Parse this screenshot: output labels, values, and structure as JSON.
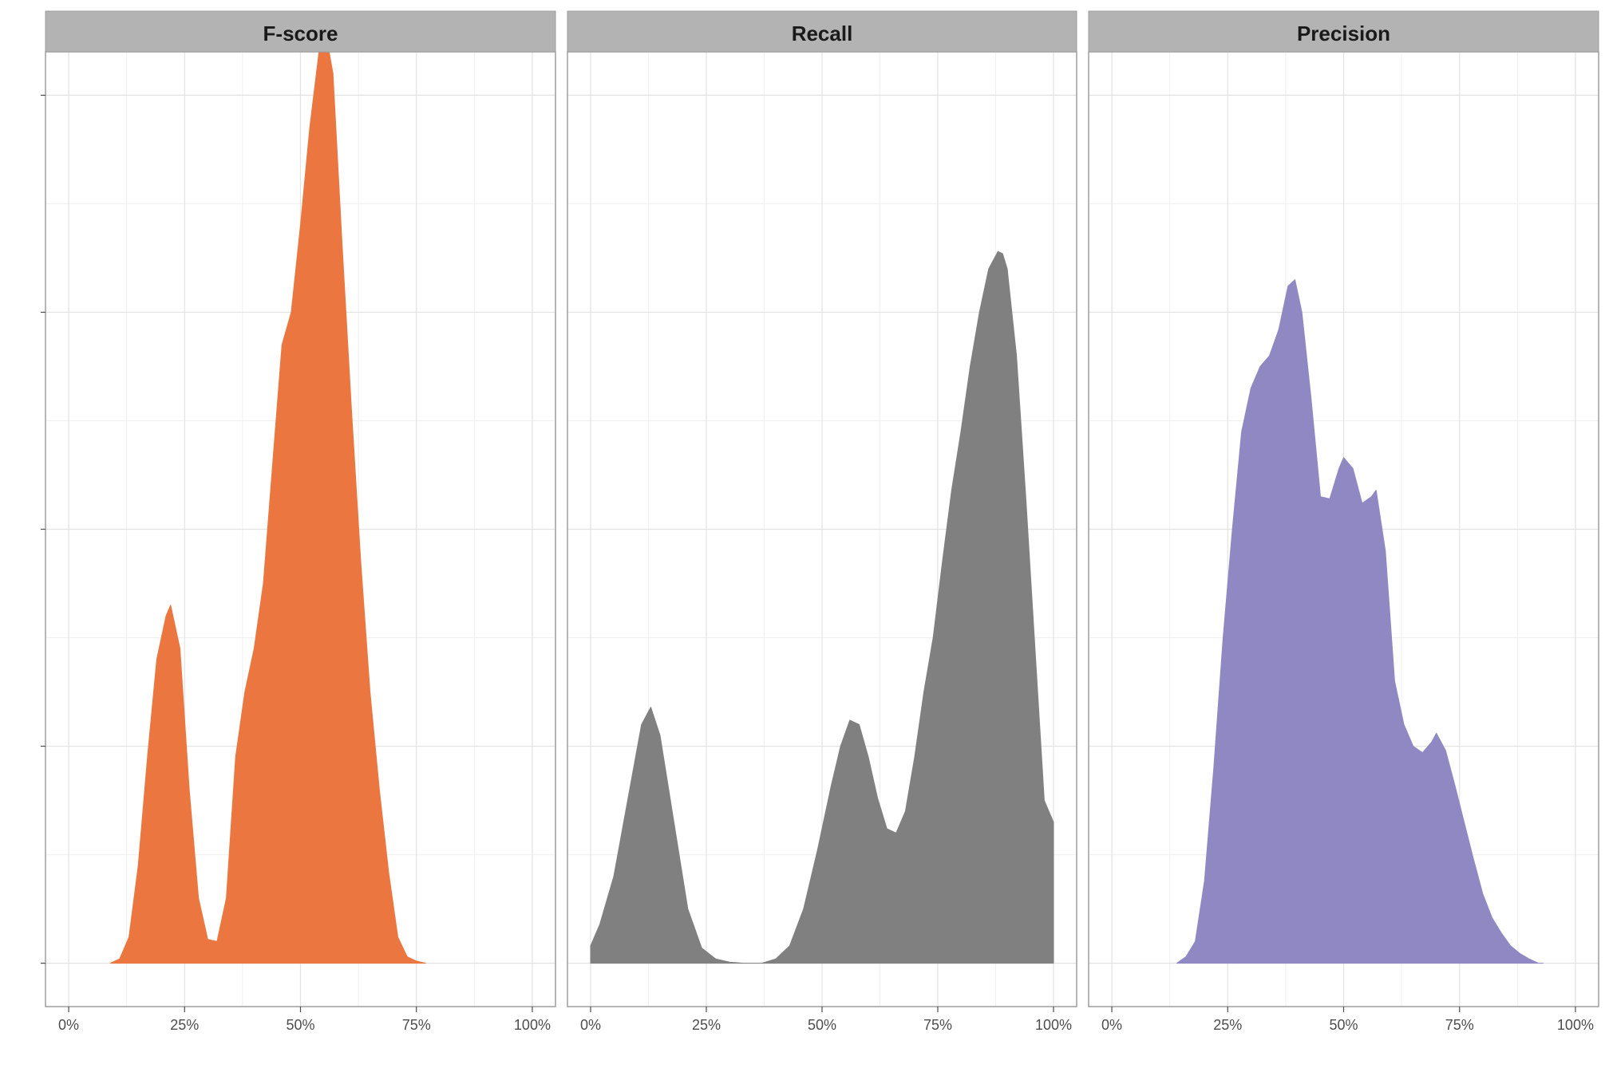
{
  "chart_data": [
    {
      "type": "area",
      "title": "F-score",
      "color": "#eb7640",
      "x_tick_labels": [
        "0%",
        "25%",
        "50%",
        "75%",
        "100%"
      ],
      "xlim": [
        -0.05,
        1.05
      ],
      "ylim": [
        -0.2,
        4.2
      ],
      "x": [
        0.09,
        0.11,
        0.13,
        0.15,
        0.17,
        0.19,
        0.21,
        0.22,
        0.24,
        0.26,
        0.28,
        0.3,
        0.32,
        0.34,
        0.36,
        0.38,
        0.4,
        0.42,
        0.44,
        0.46,
        0.48,
        0.5,
        0.52,
        0.54,
        0.555,
        0.57,
        0.59,
        0.61,
        0.63,
        0.65,
        0.67,
        0.69,
        0.71,
        0.73,
        0.75,
        0.77
      ],
      "y": [
        0.0,
        0.02,
        0.12,
        0.45,
        0.95,
        1.4,
        1.6,
        1.65,
        1.45,
        0.8,
        0.3,
        0.11,
        0.1,
        0.3,
        0.95,
        1.25,
        1.45,
        1.75,
        2.3,
        2.85,
        3.0,
        3.4,
        3.85,
        4.2,
        4.28,
        4.1,
        3.3,
        2.55,
        1.85,
        1.25,
        0.8,
        0.42,
        0.12,
        0.03,
        0.01,
        0.0
      ]
    },
    {
      "type": "area",
      "title": "Recall",
      "color": "#808080",
      "x_tick_labels": [
        "0%",
        "25%",
        "50%",
        "75%",
        "100%"
      ],
      "xlim": [
        -0.05,
        1.05
      ],
      "ylim": [
        -0.2,
        4.2
      ],
      "x": [
        0.0,
        0.02,
        0.05,
        0.08,
        0.11,
        0.13,
        0.15,
        0.18,
        0.21,
        0.24,
        0.27,
        0.3,
        0.33,
        0.35,
        0.37,
        0.4,
        0.43,
        0.46,
        0.49,
        0.52,
        0.54,
        0.56,
        0.58,
        0.6,
        0.62,
        0.64,
        0.66,
        0.68,
        0.7,
        0.72,
        0.74,
        0.76,
        0.78,
        0.8,
        0.82,
        0.84,
        0.86,
        0.88,
        0.89,
        0.9,
        0.92,
        0.94,
        0.96,
        0.98,
        1.0,
        1.0
      ],
      "y": [
        0.08,
        0.18,
        0.4,
        0.75,
        1.1,
        1.18,
        1.05,
        0.65,
        0.25,
        0.07,
        0.02,
        0.005,
        0.0,
        0.0,
        0.0,
        0.02,
        0.08,
        0.25,
        0.52,
        0.82,
        1.0,
        1.12,
        1.1,
        0.95,
        0.76,
        0.62,
        0.6,
        0.7,
        0.95,
        1.25,
        1.5,
        1.85,
        2.18,
        2.45,
        2.75,
        3.0,
        3.2,
        3.28,
        3.27,
        3.2,
        2.8,
        2.15,
        1.45,
        0.75,
        0.65,
        0.0
      ]
    },
    {
      "type": "area",
      "title": "Precision",
      "color": "#9088c2",
      "x_tick_labels": [
        "0%",
        "25%",
        "50%",
        "75%",
        "100%"
      ],
      "xlim": [
        -0.05,
        1.05
      ],
      "ylim": [
        -0.2,
        4.2
      ],
      "x": [
        0.14,
        0.16,
        0.18,
        0.2,
        0.22,
        0.24,
        0.26,
        0.28,
        0.3,
        0.32,
        0.34,
        0.36,
        0.38,
        0.395,
        0.41,
        0.43,
        0.45,
        0.47,
        0.49,
        0.5,
        0.52,
        0.54,
        0.56,
        0.57,
        0.59,
        0.61,
        0.63,
        0.65,
        0.67,
        0.69,
        0.7,
        0.72,
        0.74,
        0.76,
        0.78,
        0.8,
        0.82,
        0.84,
        0.86,
        0.88,
        0.9,
        0.92,
        0.93
      ],
      "y": [
        0.0,
        0.03,
        0.1,
        0.38,
        0.9,
        1.5,
        2.0,
        2.45,
        2.65,
        2.75,
        2.8,
        2.92,
        3.12,
        3.15,
        3.0,
        2.6,
        2.15,
        2.14,
        2.28,
        2.33,
        2.28,
        2.12,
        2.15,
        2.18,
        1.9,
        1.3,
        1.1,
        1.0,
        0.97,
        1.02,
        1.06,
        0.98,
        0.82,
        0.65,
        0.48,
        0.32,
        0.21,
        0.14,
        0.08,
        0.045,
        0.02,
        0.0,
        0.0
      ]
    }
  ]
}
